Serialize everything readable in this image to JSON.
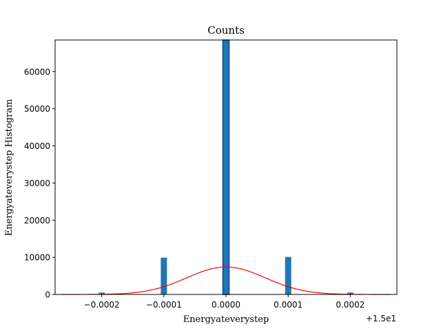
{
  "chart_data": {
    "type": "bar",
    "title": "Counts",
    "xlabel": "Energyateverystep",
    "ylabel": "Energyateverystep Histogram",
    "offset_label": "+1.5e1",
    "x_tick_labels": [
      "−0.0002",
      "−0.0001",
      "0.0000",
      "0.0001",
      "0.0002"
    ],
    "y_tick_labels": [
      "0",
      "10000",
      "20000",
      "30000",
      "40000",
      "50000",
      "60000"
    ],
    "xlim": [
      -0.000275,
      0.000275
    ],
    "ylim": [
      0,
      68500
    ],
    "grid": false,
    "bars": [
      {
        "x": -0.0002,
        "count": 500,
        "color": "#1f77b4"
      },
      {
        "x": -0.0001,
        "count": 9900,
        "color": "#1f77b4"
      },
      {
        "x": 0.0,
        "count": 68500,
        "color": "#1f77b4",
        "outline": "#0b3fa0"
      },
      {
        "x": 0.0001,
        "count": 10100,
        "color": "#1f77b4"
      },
      {
        "x": 0.0002,
        "count": 500,
        "color": "#1f77b4"
      }
    ],
    "fit_curve": {
      "type": "gaussian",
      "color": "#ff0000",
      "peak": 7400,
      "mean": 0.0,
      "sigma": 6.3e-05,
      "x_range": [
        -0.000265,
        0.000265
      ]
    }
  }
}
